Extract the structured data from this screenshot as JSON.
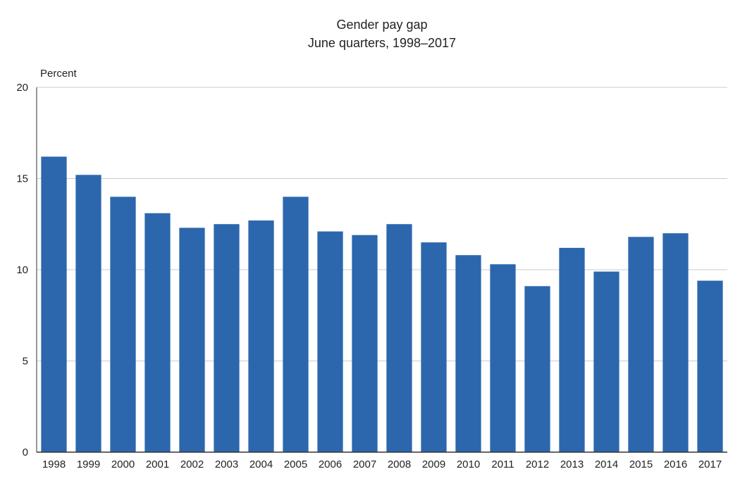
{
  "chart_data": {
    "type": "bar",
    "title": "Gender pay gap",
    "subtitle": "June quarters, 1998–2017",
    "ylabel": "Percent",
    "xlabel": "",
    "ylim": [
      0,
      20
    ],
    "yticks": [
      0,
      5,
      10,
      15,
      20
    ],
    "grid": true,
    "categories": [
      "1998",
      "1999",
      "2000",
      "2001",
      "2002",
      "2003",
      "2004",
      "2005",
      "2006",
      "2007",
      "2008",
      "2009",
      "2010",
      "2011",
      "2012",
      "2013",
      "2014",
      "2015",
      "2016",
      "2017"
    ],
    "values": [
      16.2,
      15.2,
      14.0,
      13.1,
      12.3,
      12.5,
      12.7,
      14.0,
      12.1,
      11.9,
      12.5,
      11.5,
      10.8,
      10.3,
      9.1,
      11.2,
      9.9,
      11.8,
      12.0,
      9.4
    ],
    "bar_color": "#2c67ad",
    "grid_color": "#cccccc",
    "axis_color": "#333333"
  }
}
